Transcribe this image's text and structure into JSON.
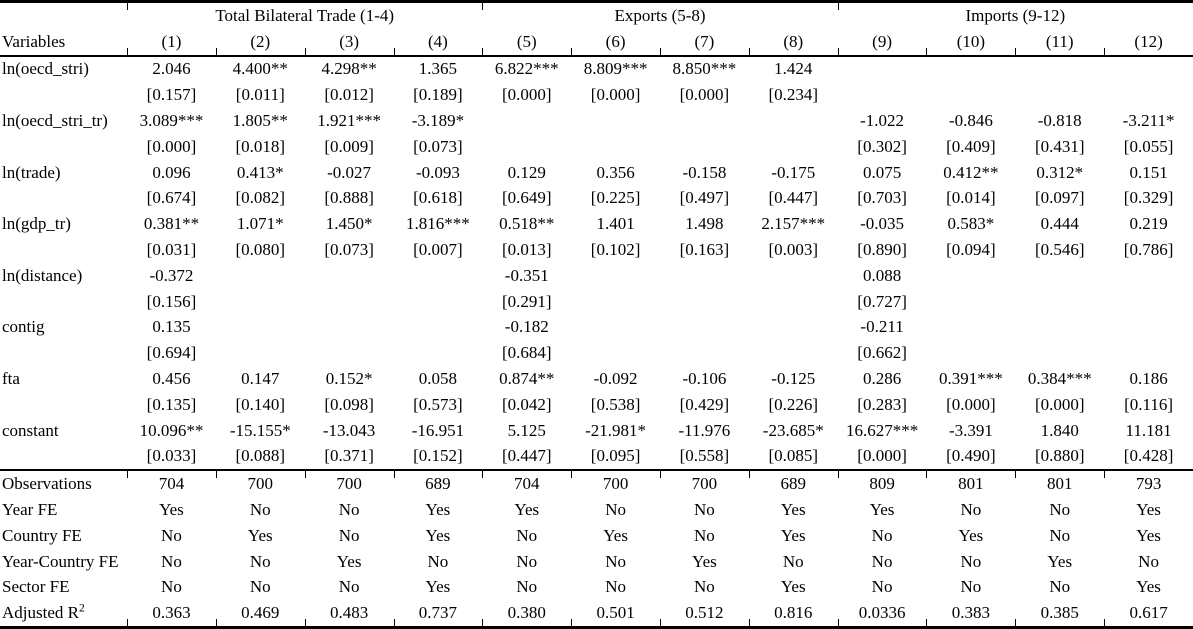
{
  "table": {
    "groups": [
      {
        "label": "",
        "span": 1
      },
      {
        "label": "Total Bilateral Trade (1-4)",
        "span": 4
      },
      {
        "label": "Exports (5-8)",
        "span": 4
      },
      {
        "label": "Imports (9-12)",
        "span": 4
      }
    ],
    "columns": [
      "Variables",
      "(1)",
      "(2)",
      "(3)",
      "(4)",
      "(5)",
      "(6)",
      "(7)",
      "(8)",
      "(9)",
      "(10)",
      "(11)",
      "(12)"
    ],
    "variables": [
      {
        "name": "ln(oecd_stri)",
        "coef": [
          "2.046",
          "4.400**",
          "4.298**",
          "1.365",
          "6.822***",
          "8.809***",
          "8.850***",
          "1.424",
          "",
          "",
          "",
          ""
        ],
        "p": [
          "[0.157]",
          "[0.011]",
          "[0.012]",
          "[0.189]",
          "[0.000]",
          "[0.000]",
          "[0.000]",
          "[0.234]",
          "",
          "",
          "",
          ""
        ]
      },
      {
        "name": "ln(oecd_stri_tr)",
        "coef": [
          "3.089***",
          "1.805**",
          "1.921***",
          "-3.189*",
          "",
          "",
          "",
          "",
          "-1.022",
          "-0.846",
          "-0.818",
          "-3.211*"
        ],
        "p": [
          "[0.000]",
          "[0.018]",
          "[0.009]",
          "[0.073]",
          "",
          "",
          "",
          "",
          "[0.302]",
          "[0.409]",
          "[0.431]",
          "[0.055]"
        ]
      },
      {
        "name": "ln(trade)",
        "coef": [
          "0.096",
          "0.413*",
          "-0.027",
          "-0.093",
          "0.129",
          "0.356",
          "-0.158",
          "-0.175",
          "0.075",
          "0.412**",
          "0.312*",
          "0.151"
        ],
        "p": [
          "[0.674]",
          "[0.082]",
          "[0.888]",
          "[0.618]",
          "[0.649]",
          "[0.225]",
          "[0.497]",
          "[0.447]",
          "[0.703]",
          "[0.014]",
          "[0.097]",
          "[0.329]"
        ]
      },
      {
        "name": "ln(gdp_tr)",
        "coef": [
          "0.381**",
          "1.071*",
          "1.450*",
          "1.816***",
          "0.518**",
          "1.401",
          "1.498",
          "2.157***",
          "-0.035",
          "0.583*",
          "0.444",
          "0.219"
        ],
        "p": [
          "[0.031]",
          "[0.080]",
          "[0.073]",
          "[0.007]",
          "[0.013]",
          "[0.102]",
          "[0.163]",
          "[0.003]",
          "[0.890]",
          "[0.094]",
          "[0.546]",
          "[0.786]"
        ]
      },
      {
        "name": "ln(distance)",
        "coef": [
          "-0.372",
          "",
          "",
          "",
          "-0.351",
          "",
          "",
          "",
          "0.088",
          "",
          "",
          ""
        ],
        "p": [
          "[0.156]",
          "",
          "",
          "",
          "[0.291]",
          "",
          "",
          "",
          "[0.727]",
          "",
          "",
          ""
        ]
      },
      {
        "name": "contig",
        "coef": [
          "0.135",
          "",
          "",
          "",
          "-0.182",
          "",
          "",
          "",
          "-0.211",
          "",
          "",
          ""
        ],
        "p": [
          "[0.694]",
          "",
          "",
          "",
          "[0.684]",
          "",
          "",
          "",
          "[0.662]",
          "",
          "",
          ""
        ]
      },
      {
        "name": "fta",
        "coef": [
          "0.456",
          "0.147",
          "0.152*",
          "0.058",
          "0.874**",
          "-0.092",
          "-0.106",
          "-0.125",
          "0.286",
          "0.391***",
          "0.384***",
          "0.186"
        ],
        "p": [
          "[0.135]",
          "[0.140]",
          "[0.098]",
          "[0.573]",
          "[0.042]",
          "[0.538]",
          "[0.429]",
          "[0.226]",
          "[0.283]",
          "[0.000]",
          "[0.000]",
          "[0.116]"
        ]
      },
      {
        "name": "constant",
        "coef": [
          "10.096**",
          "-15.155*",
          "-13.043",
          "-16.951",
          "5.125",
          "-21.981*",
          "-11.976",
          "-23.685*",
          "16.627***",
          "-3.391",
          "1.840",
          "11.181"
        ],
        "p": [
          "[0.033]",
          "[0.088]",
          "[0.371]",
          "[0.152]",
          "[0.447]",
          "[0.095]",
          "[0.558]",
          "[0.085]",
          "[0.000]",
          "[0.490]",
          "[0.880]",
          "[0.428]"
        ]
      }
    ],
    "summary": [
      {
        "name": "Observations",
        "values": [
          "704",
          "700",
          "700",
          "689",
          "704",
          "700",
          "700",
          "689",
          "809",
          "801",
          "801",
          "793"
        ]
      },
      {
        "name": "Year FE",
        "values": [
          "Yes",
          "No",
          "No",
          "Yes",
          "Yes",
          "No",
          "No",
          "Yes",
          "Yes",
          "No",
          "No",
          "Yes"
        ]
      },
      {
        "name": "Country FE",
        "values": [
          "No",
          "Yes",
          "No",
          "Yes",
          "No",
          "Yes",
          "No",
          "Yes",
          "No",
          "Yes",
          "No",
          "Yes"
        ]
      },
      {
        "name": "Year-Country FE",
        "values": [
          "No",
          "No",
          "Yes",
          "No",
          "No",
          "No",
          "Yes",
          "No",
          "No",
          "No",
          "Yes",
          "No"
        ]
      },
      {
        "name": "Sector FE",
        "values": [
          "No",
          "No",
          "No",
          "Yes",
          "No",
          "No",
          "No",
          "Yes",
          "No",
          "No",
          "No",
          "Yes"
        ]
      },
      {
        "name": "Adjusted R²",
        "values": [
          "0.363",
          "0.469",
          "0.483",
          "0.737",
          "0.380",
          "0.501",
          "0.512",
          "0.816",
          "0.0336",
          "0.383",
          "0.385",
          "0.617"
        ]
      }
    ]
  }
}
